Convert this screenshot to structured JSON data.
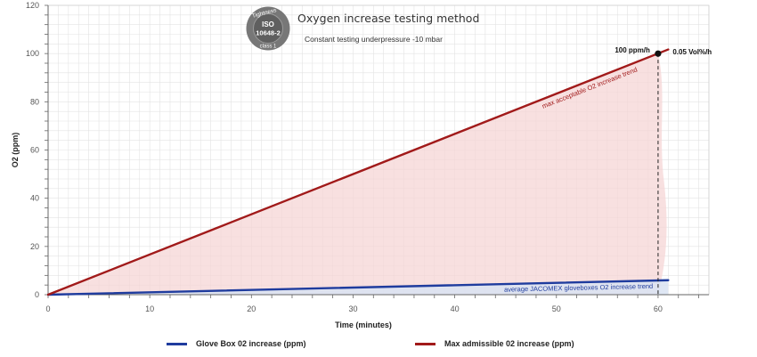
{
  "header": {
    "title": "Oxygen increase testing method",
    "subtitle": "Constant testing underpressure -10 mbar",
    "badge": {
      "arc_text": "Tightness",
      "line1": "ISO",
      "line2": "10648-2",
      "bottom_text": "class 1"
    }
  },
  "colors": {
    "max_line": "#a11a1a",
    "max_fill": "#f6d6d6",
    "glovebox_line": "#1f3c9e",
    "glovebox_fill": "#d9e3f2",
    "grid": "#e3e3e3",
    "axis": "#666666",
    "badge": "#666666"
  },
  "chart_data": {
    "type": "line",
    "xlabel": "Time (minutes)",
    "ylabel": "O2 (ppm)",
    "xlim": [
      0,
      65
    ],
    "ylim": [
      0,
      120
    ],
    "x_ticks": [
      0,
      10,
      20,
      30,
      40,
      50,
      60
    ],
    "y_ticks": [
      0,
      20,
      40,
      60,
      80,
      100,
      120
    ],
    "grid": true,
    "legend_position": "bottom",
    "series": [
      {
        "name": "Glove Box 02 increase (ppm)",
        "color": "#1f3c9e",
        "x": [
          0,
          61
        ],
        "y": [
          0,
          6
        ]
      },
      {
        "name": "Max admissible 02 increase (ppm)",
        "color": "#a11a1a",
        "x": [
          0,
          61
        ],
        "y": [
          0,
          101.7
        ]
      }
    ],
    "annotations": {
      "max_trend_label": "max acceptable O2 increase trend",
      "glovebox_trend_label": "average JACOMEX gloveboxes O2 increase trend",
      "point_label": "100 ppm/h",
      "point_x": 60,
      "point_y": 100,
      "right_label": "0.05 Vol%/h",
      "vertical_marker_x": 60
    }
  }
}
